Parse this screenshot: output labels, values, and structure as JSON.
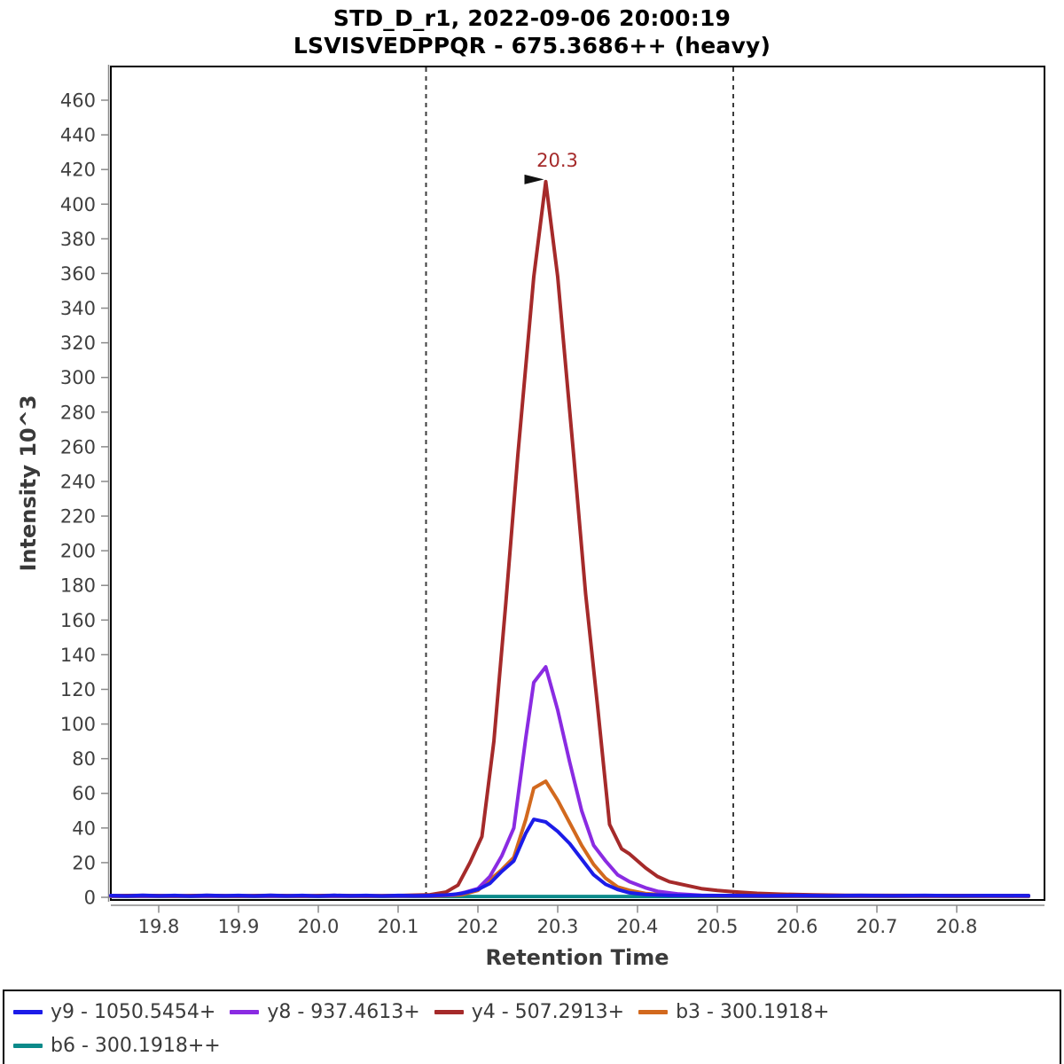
{
  "header": {
    "title_line1": "STD_D_r1, 2022-09-06 20:00:19",
    "title_line2": "LSVISVEDPPQR - 675.3686++ (heavy)"
  },
  "colors": {
    "y9": "#1C1CE8",
    "y8": "#8A2BE2",
    "y4": "#A52A2A",
    "b3": "#D2691E",
    "b6": "#0B8A8A",
    "boundary": "#3C3C3C",
    "axis_gray": "#8a8a8a",
    "tick_text": "#3F3F3F",
    "border": "#000000",
    "annotation_text": "#A52A2A",
    "annotation_arrow": "#111111"
  },
  "legend": {
    "items": [
      {
        "id": "y9",
        "label": "y9 - 1050.5454+",
        "color": "#1C1CE8",
        "row": 0
      },
      {
        "id": "y8",
        "label": "y8 - 937.4613+",
        "color": "#8A2BE2",
        "row": 0
      },
      {
        "id": "y4",
        "label": "y4 - 507.2913+",
        "color": "#A52A2A",
        "row": 0
      },
      {
        "id": "b3",
        "label": "b3 - 300.1918+",
        "color": "#D2691E",
        "row": 0
      },
      {
        "id": "b6",
        "label": "b6 - 300.1918++",
        "color": "#0B8A8A",
        "row": 1
      }
    ]
  },
  "chart_data": {
    "type": "line",
    "title": "STD_D_r1, 2022-09-06 20:00:19",
    "subtitle": "LSVISVEDPPQR - 675.3686++ (heavy)",
    "xlabel": "Retention Time",
    "ylabel": "Intensity 10^3",
    "xlim": [
      19.74,
      20.91
    ],
    "ylim": [
      0,
      478
    ],
    "x_ticks": [
      19.8,
      19.9,
      20.0,
      20.1,
      20.2,
      20.3,
      20.4,
      20.5,
      20.6,
      20.7,
      20.8
    ],
    "y_ticks": [
      0,
      20,
      40,
      60,
      80,
      100,
      120,
      140,
      160,
      180,
      200,
      220,
      240,
      260,
      280,
      300,
      320,
      340,
      360,
      380,
      400,
      420,
      440,
      460
    ],
    "grid": false,
    "legend_position": "bottom",
    "integration_boundaries": [
      20.135,
      20.52
    ],
    "peak_annotation": {
      "label": "20.3",
      "rt": 20.285,
      "value": 413
    },
    "series": [
      {
        "id": "b6",
        "name": "b6 - 300.1918++",
        "color": "#0B8A8A",
        "points": [
          [
            19.74,
            0.45
          ],
          [
            20.0,
            0.45
          ],
          [
            20.3,
            0.45
          ],
          [
            20.6,
            0.45
          ],
          [
            20.89,
            0.45
          ]
        ]
      },
      {
        "id": "b3",
        "name": "b3 - 300.1918+",
        "color": "#D2691E",
        "points": [
          [
            19.74,
            0.6
          ],
          [
            19.85,
            0.6
          ],
          [
            19.95,
            0.6
          ],
          [
            20.05,
            0.6
          ],
          [
            20.15,
            0.7
          ],
          [
            20.18,
            1.5
          ],
          [
            20.2,
            4
          ],
          [
            20.215,
            10
          ],
          [
            20.23,
            16
          ],
          [
            20.245,
            23
          ],
          [
            20.26,
            45
          ],
          [
            20.27,
            63
          ],
          [
            20.285,
            67
          ],
          [
            20.3,
            56
          ],
          [
            20.315,
            43
          ],
          [
            20.33,
            30
          ],
          [
            20.345,
            19
          ],
          [
            20.36,
            11
          ],
          [
            20.375,
            6
          ],
          [
            20.39,
            4
          ],
          [
            20.41,
            2.2
          ],
          [
            20.44,
            1.2
          ],
          [
            20.48,
            0.8
          ],
          [
            20.55,
            0.65
          ],
          [
            20.65,
            0.6
          ],
          [
            20.75,
            0.55
          ],
          [
            20.89,
            0.55
          ]
        ]
      },
      {
        "id": "y8",
        "name": "y8 - 937.4613+",
        "color": "#8A2BE2",
        "points": [
          [
            19.74,
            0.7
          ],
          [
            19.82,
            0.7
          ],
          [
            19.9,
            0.7
          ],
          [
            19.98,
            0.7
          ],
          [
            20.06,
            0.7
          ],
          [
            20.14,
            0.8
          ],
          [
            20.17,
            1.5
          ],
          [
            20.185,
            3
          ],
          [
            20.2,
            5
          ],
          [
            20.215,
            12
          ],
          [
            20.23,
            24
          ],
          [
            20.245,
            40
          ],
          [
            20.26,
            92
          ],
          [
            20.27,
            124
          ],
          [
            20.285,
            133
          ],
          [
            20.3,
            108
          ],
          [
            20.315,
            78
          ],
          [
            20.33,
            50
          ],
          [
            20.345,
            30
          ],
          [
            20.36,
            21
          ],
          [
            20.375,
            13
          ],
          [
            20.39,
            9
          ],
          [
            20.41,
            5.5
          ],
          [
            20.425,
            3.5
          ],
          [
            20.45,
            2
          ],
          [
            20.48,
            1.2
          ],
          [
            20.52,
            0.9
          ],
          [
            20.6,
            0.8
          ],
          [
            20.7,
            0.75
          ],
          [
            20.8,
            0.8
          ],
          [
            20.89,
            0.75
          ]
        ]
      },
      {
        "id": "y4",
        "name": "y4 - 507.2913+",
        "color": "#A52A2A",
        "points": [
          [
            19.74,
            0.9
          ],
          [
            19.78,
            1.1
          ],
          [
            19.82,
            0.85
          ],
          [
            19.86,
            1.05
          ],
          [
            19.9,
            0.9
          ],
          [
            19.94,
            1.1
          ],
          [
            19.98,
            0.9
          ],
          [
            20.02,
            1.05
          ],
          [
            20.06,
            0.9
          ],
          [
            20.1,
            1.0
          ],
          [
            20.14,
            1.5
          ],
          [
            20.16,
            3
          ],
          [
            20.175,
            7
          ],
          [
            20.19,
            20
          ],
          [
            20.205,
            35
          ],
          [
            20.22,
            90
          ],
          [
            20.235,
            170
          ],
          [
            20.25,
            255
          ],
          [
            20.27,
            358
          ],
          [
            20.285,
            413
          ],
          [
            20.3,
            358
          ],
          [
            20.32,
            255
          ],
          [
            20.335,
            175
          ],
          [
            20.35,
            110
          ],
          [
            20.365,
            42
          ],
          [
            20.38,
            28
          ],
          [
            20.39,
            25
          ],
          [
            20.41,
            17
          ],
          [
            20.425,
            12
          ],
          [
            20.44,
            9
          ],
          [
            20.46,
            7
          ],
          [
            20.48,
            5
          ],
          [
            20.5,
            4
          ],
          [
            20.52,
            3.2
          ],
          [
            20.55,
            2.3
          ],
          [
            20.58,
            1.8
          ],
          [
            20.62,
            1.4
          ],
          [
            20.66,
            1.2
          ],
          [
            20.72,
            1.1
          ],
          [
            20.78,
            1.0
          ],
          [
            20.84,
            1.0
          ],
          [
            20.89,
            1.0
          ]
        ]
      },
      {
        "id": "y9",
        "name": "y9 - 1050.5454+",
        "color": "#1C1CE8",
        "points": [
          [
            19.74,
            1.0
          ],
          [
            19.76,
            0.75
          ],
          [
            19.78,
            1.15
          ],
          [
            19.8,
            0.8
          ],
          [
            19.82,
            1.1
          ],
          [
            19.84,
            0.7
          ],
          [
            19.86,
            1.15
          ],
          [
            19.88,
            0.85
          ],
          [
            19.9,
            1.1
          ],
          [
            19.92,
            0.75
          ],
          [
            19.94,
            1.15
          ],
          [
            19.96,
            0.8
          ],
          [
            19.98,
            1.05
          ],
          [
            20.0,
            0.7
          ],
          [
            20.02,
            1.15
          ],
          [
            20.04,
            0.85
          ],
          [
            20.06,
            1.05
          ],
          [
            20.08,
            0.75
          ],
          [
            20.1,
            1.1
          ],
          [
            20.12,
            0.85
          ],
          [
            20.14,
            1.0
          ],
          [
            20.16,
            1.3
          ],
          [
            20.18,
            2.2
          ],
          [
            20.2,
            4.5
          ],
          [
            20.215,
            8
          ],
          [
            20.23,
            15
          ],
          [
            20.245,
            21
          ],
          [
            20.26,
            37
          ],
          [
            20.27,
            45
          ],
          [
            20.285,
            43.5
          ],
          [
            20.3,
            38
          ],
          [
            20.315,
            31
          ],
          [
            20.33,
            22
          ],
          [
            20.345,
            13
          ],
          [
            20.36,
            7.5
          ],
          [
            20.375,
            4.5
          ],
          [
            20.39,
            2.6
          ],
          [
            20.41,
            1.6
          ],
          [
            20.44,
            1.1
          ],
          [
            20.48,
            1.0
          ],
          [
            20.52,
            1.0
          ],
          [
            20.56,
            0.9
          ],
          [
            20.6,
            1.05
          ],
          [
            20.64,
            0.85
          ],
          [
            20.68,
            1.05
          ],
          [
            20.72,
            0.9
          ],
          [
            20.76,
            1.05
          ],
          [
            20.8,
            0.9
          ],
          [
            20.84,
            1.0
          ],
          [
            20.89,
            0.95
          ]
        ]
      }
    ]
  }
}
